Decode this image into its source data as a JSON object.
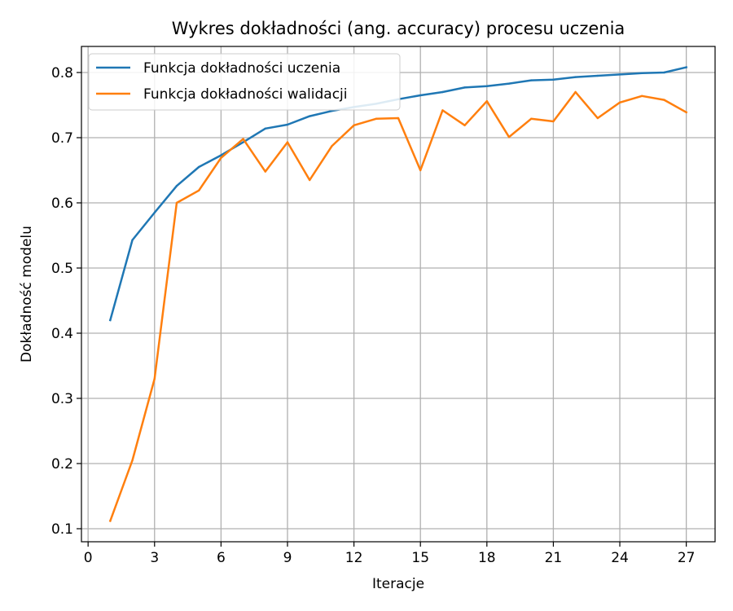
{
  "chart_data": {
    "type": "line",
    "title": "Wykres dokładności (ang. accuracy) procesu uczenia",
    "xlabel": "Iteracje",
    "ylabel": "Dokładność modelu",
    "xlim": [
      -0.3,
      28.3
    ],
    "ylim": [
      0.08,
      0.84
    ],
    "xticks": [
      0,
      3,
      6,
      9,
      12,
      15,
      18,
      21,
      24,
      27
    ],
    "yticks": [
      0.1,
      0.2,
      0.3,
      0.4,
      0.5,
      0.6,
      0.7,
      0.8
    ],
    "grid": true,
    "legend_position": "top-left",
    "x": [
      1,
      2,
      3,
      4,
      5,
      6,
      7,
      8,
      9,
      10,
      11,
      12,
      13,
      14,
      15,
      16,
      17,
      18,
      19,
      20,
      21,
      22,
      23,
      24,
      25,
      26,
      27
    ],
    "series": [
      {
        "name": "Funkcja dokładności uczenia",
        "color": "#1f77b4",
        "values": [
          0.42,
          0.543,
          0.585,
          0.626,
          0.655,
          0.673,
          0.693,
          0.714,
          0.72,
          0.733,
          0.741,
          0.747,
          0.752,
          0.759,
          0.765,
          0.77,
          0.777,
          0.779,
          0.783,
          0.788,
          0.789,
          0.793,
          0.795,
          0.797,
          0.799,
          0.8,
          0.808
        ]
      },
      {
        "name": "Funkcja dokładności walidacji",
        "color": "#ff7f0e",
        "values": [
          0.112,
          0.205,
          0.33,
          0.6,
          0.619,
          0.669,
          0.698,
          0.648,
          0.693,
          0.635,
          0.687,
          0.719,
          0.729,
          0.73,
          0.65,
          0.742,
          0.719,
          0.756,
          0.701,
          0.729,
          0.725,
          0.77,
          0.73,
          0.754,
          0.764,
          0.758,
          0.739
        ]
      }
    ]
  }
}
